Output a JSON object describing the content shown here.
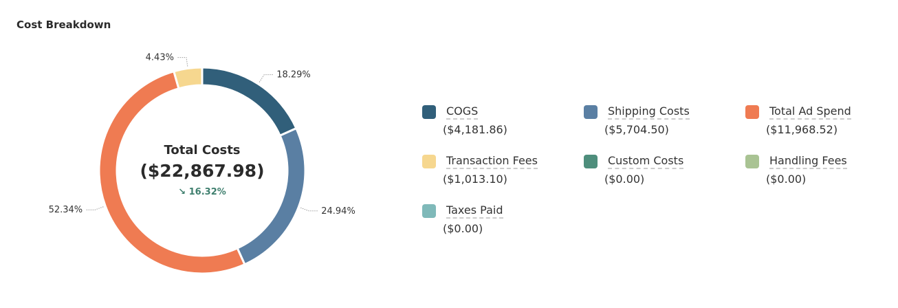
{
  "title": "Cost Breakdown",
  "center": {
    "label": "Total Costs",
    "value": "($22,867.98)",
    "change": "16.32%",
    "change_icon": "arrow-down-right-icon"
  },
  "chart_data": {
    "type": "pie",
    "variant": "donut",
    "title": "Cost Breakdown",
    "series": [
      {
        "name": "COGS",
        "value": 4181.86,
        "display": "($4,181.86)",
        "percent": 18.29,
        "percent_label": "18.29%",
        "color": "#315f7a"
      },
      {
        "name": "Shipping Costs",
        "value": 5704.5,
        "display": "($5,704.50)",
        "percent": 24.94,
        "percent_label": "24.94%",
        "color": "#5a7fa3"
      },
      {
        "name": "Total Ad Spend",
        "value": 11968.52,
        "display": "($11,968.52)",
        "percent": 52.34,
        "percent_label": "52.34%",
        "color": "#ef7b52"
      },
      {
        "name": "Transaction Fees",
        "value": 1013.1,
        "display": "($1,013.10)",
        "percent": 4.43,
        "percent_label": "4.43%",
        "color": "#f6d78f"
      },
      {
        "name": "Custom Costs",
        "value": 0,
        "display": "($0.00)",
        "percent": 0,
        "percent_label": "",
        "color": "#4e8e7c"
      },
      {
        "name": "Handling Fees",
        "value": 0,
        "display": "($0.00)",
        "percent": 0,
        "percent_label": "",
        "color": "#a9c393"
      },
      {
        "name": "Taxes Paid",
        "value": 0,
        "display": "($0.00)",
        "percent": 0,
        "percent_label": "",
        "color": "#7fb9b9"
      }
    ],
    "legend": "right"
  }
}
